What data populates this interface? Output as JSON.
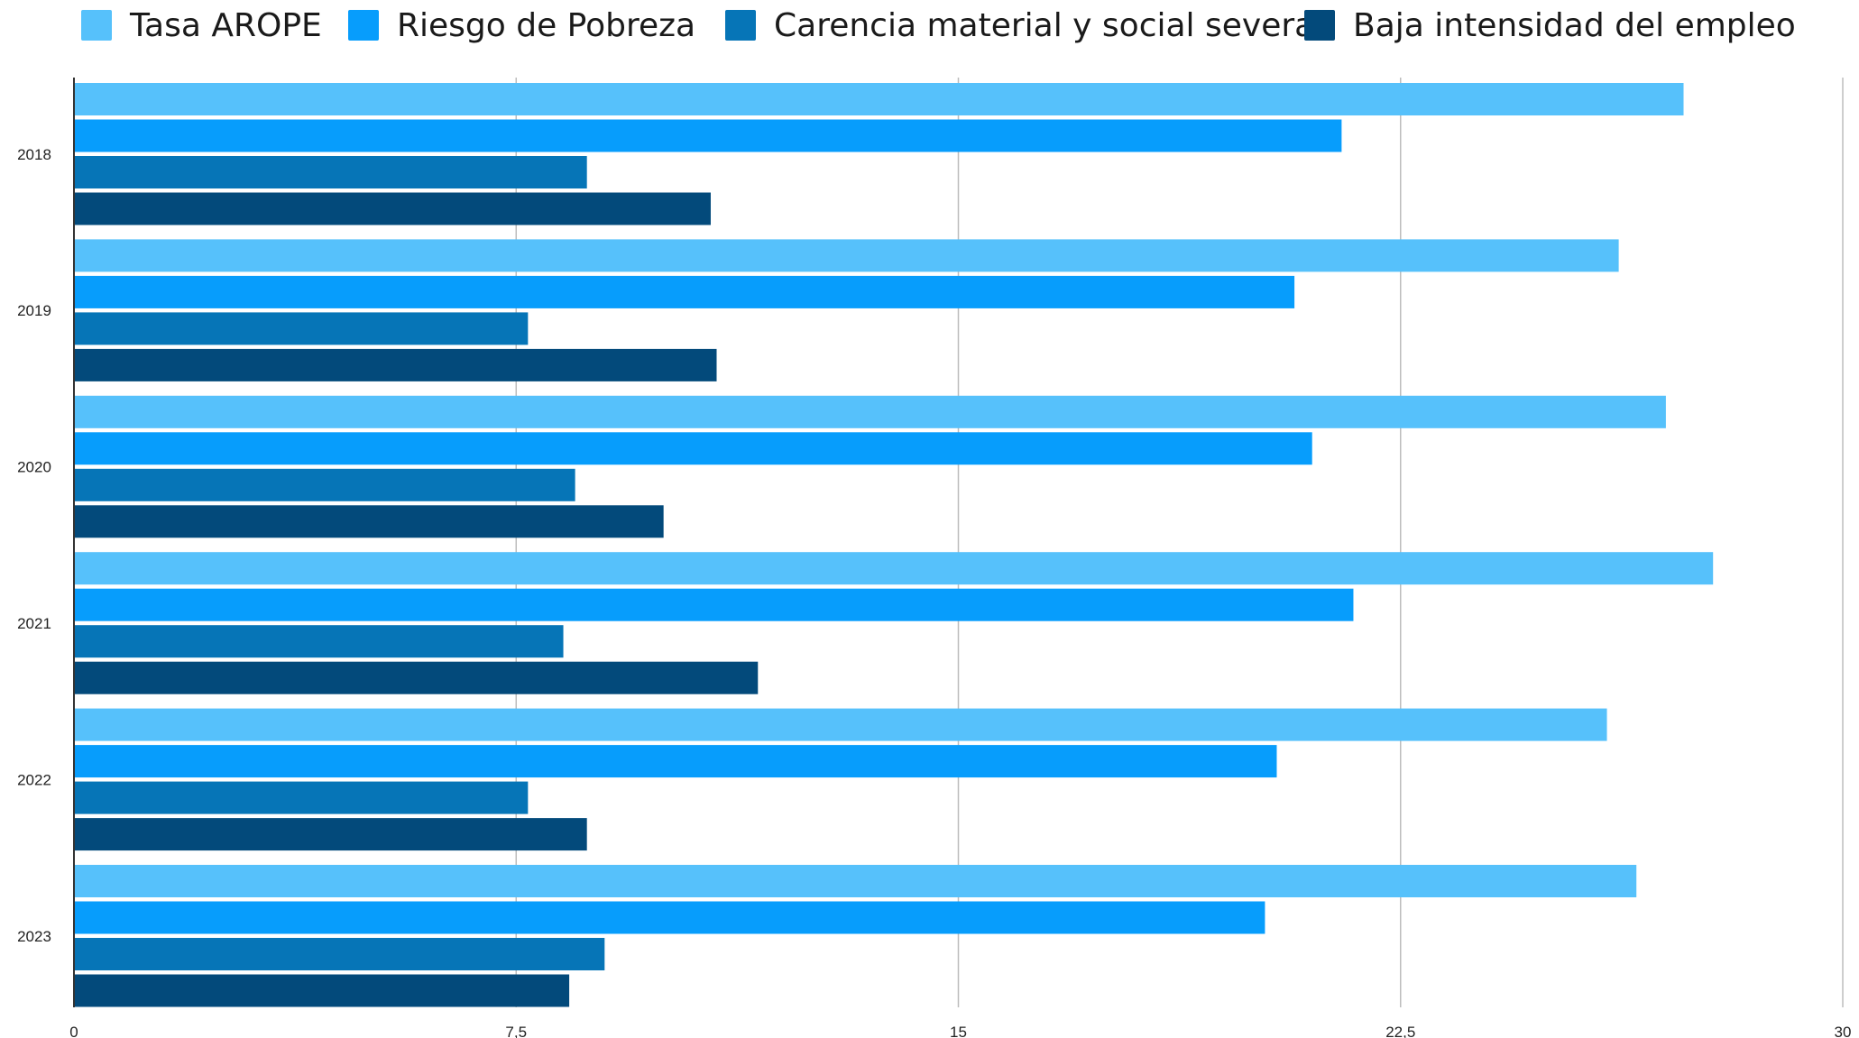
{
  "chart_data": {
    "type": "bar",
    "orientation": "horizontal",
    "categories": [
      "2018",
      "2019",
      "2020",
      "2021",
      "2022",
      "2023"
    ],
    "series": [
      {
        "name": "Tasa AROPE",
        "color": "#56c1fb",
        "values": [
          27.3,
          26.2,
          27.0,
          27.8,
          26.0,
          26.5
        ]
      },
      {
        "name": "Riesgo de Pobreza",
        "color": "#079dfc",
        "values": [
          21.5,
          20.7,
          21.0,
          21.7,
          20.4,
          20.2
        ]
      },
      {
        "name": "Carencia material y social severa",
        "color": "#0675b7",
        "values": [
          8.7,
          7.7,
          8.5,
          8.3,
          7.7,
          9.0
        ]
      },
      {
        "name": "Baja intensidad del empleo",
        "color": "#034a7b",
        "values": [
          10.8,
          10.9,
          10.0,
          11.6,
          8.7,
          8.4
        ]
      }
    ],
    "xlim": [
      0,
      30
    ],
    "x_ticks": [
      "0",
      "7,5",
      "15",
      "22,5",
      "30"
    ],
    "x_tick_values": [
      0,
      7.5,
      15,
      22.5,
      30
    ],
    "grid": "vertical",
    "legend_position": "top",
    "title": "",
    "xlabel": "",
    "ylabel": ""
  }
}
